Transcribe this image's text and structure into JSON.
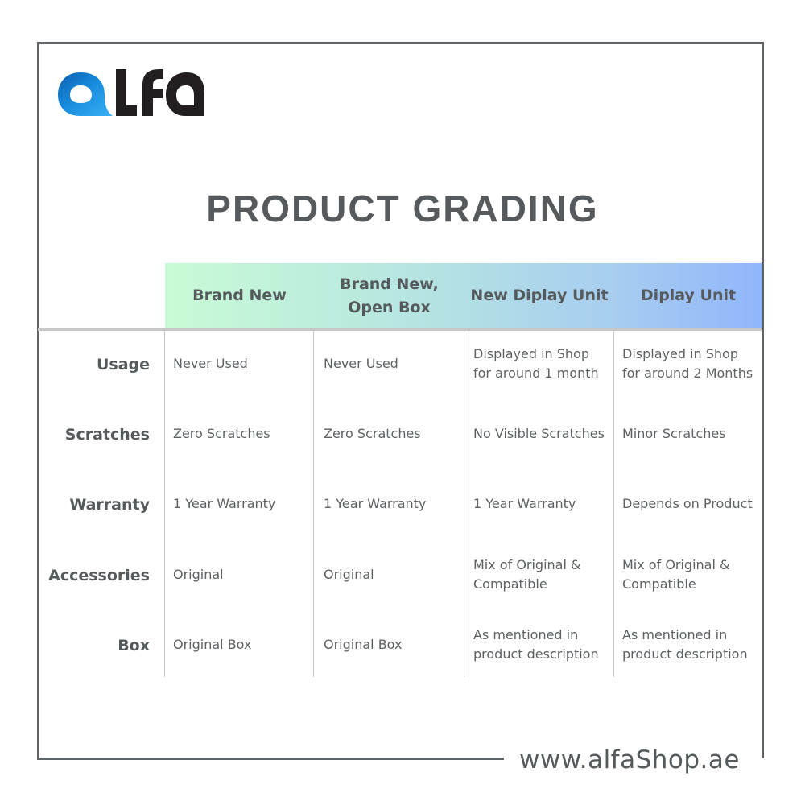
{
  "brand": {
    "logo_text": "alfa",
    "logo_colors": {
      "a": "#1a8fe0",
      "lfa": "#231f20"
    }
  },
  "title": "PRODUCT GRADING",
  "columns": [
    "Brand New",
    "Brand New,\nOpen Box",
    "New Diplay Unit",
    "Diplay Unit"
  ],
  "rows": [
    {
      "label": "Usage",
      "cells": [
        "Never Used",
        "Never Used",
        "Displayed in Shop\nfor around 1 month",
        "Displayed in Shop\nfor around 2 Months"
      ]
    },
    {
      "label": "Scratches",
      "cells": [
        "Zero Scratches",
        "Zero Scratches",
        "No Visible Scratches",
        "Minor Scratches"
      ]
    },
    {
      "label": "Warranty",
      "cells": [
        "1 Year Warranty",
        "1 Year Warranty",
        "1 Year Warranty",
        "Depends on Product"
      ]
    },
    {
      "label": "Accessories",
      "cells": [
        "Original",
        "Original",
        "Mix of Original &\nCompatible",
        "Mix of Original &\nCompatible"
      ]
    },
    {
      "label": "Box",
      "cells": [
        "Original Box",
        "Original Box",
        "As mentioned in\nproduct description",
        "As mentioned in\nproduct description"
      ]
    }
  ],
  "footer": {
    "url": "www.alfaShop.ae"
  },
  "colors": {
    "header_gradient_start": "#c9fbd6",
    "header_gradient_end": "#90b6fb",
    "text": "#555a5c"
  }
}
